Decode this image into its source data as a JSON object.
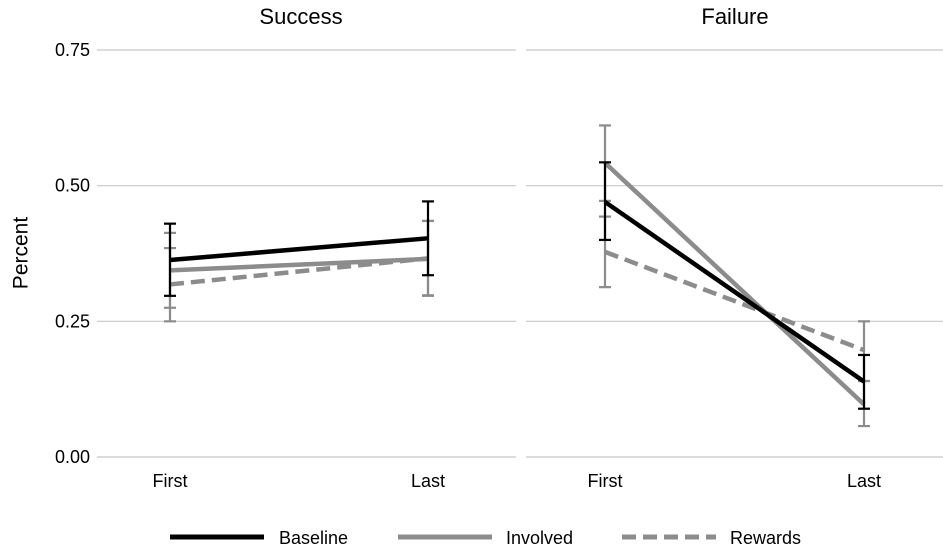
{
  "chart_data": {
    "type": "line",
    "ylabel": "Percent",
    "ylim": [
      0,
      0.75
    ],
    "yticks": [
      "0.00",
      "0.25",
      "0.50",
      "0.75"
    ],
    "yticks_values": [
      0,
      0.25,
      0.5,
      0.75
    ],
    "x": [
      "First",
      "Last"
    ],
    "grid": true,
    "legend_position": "bottom",
    "series_styles": {
      "Baseline": {
        "color": "#000000",
        "dash": "solid"
      },
      "Involved": {
        "color": "#8c8c8c",
        "dash": "solid"
      },
      "Rewards": {
        "color": "#8c8c8c",
        "dash": "dashed"
      }
    },
    "panels": [
      {
        "title": "Success",
        "series": [
          {
            "name": "Baseline",
            "values": [
              0.363,
              0.403
            ],
            "lower": [
              0.297,
              0.335
            ],
            "upper": [
              0.43,
              0.471
            ]
          },
          {
            "name": "Involved",
            "values": [
              0.344,
              0.365
            ],
            "lower": [
              0.275,
              0.298
            ],
            "upper": [
              0.413,
              0.435
            ]
          },
          {
            "name": "Rewards",
            "values": [
              0.318,
              0.366
            ],
            "lower": [
              0.25,
              0.297
            ],
            "upper": [
              0.385,
              0.435
            ]
          }
        ]
      },
      {
        "title": "Failure",
        "series": [
          {
            "name": "Baseline",
            "values": [
              0.47,
              0.139
            ],
            "lower": [
              0.4,
              0.089
            ],
            "upper": [
              0.543,
              0.188
            ]
          },
          {
            "name": "Involved",
            "values": [
              0.542,
              0.097
            ],
            "lower": [
              0.472,
              0.057
            ],
            "upper": [
              0.611,
              0.14
            ]
          },
          {
            "name": "Rewards",
            "values": [
              0.378,
              0.197
            ],
            "lower": [
              0.313,
              0.14
            ],
            "upper": [
              0.443,
              0.25
            ]
          }
        ]
      }
    ],
    "legend": [
      "Baseline",
      "Involved",
      "Rewards"
    ]
  }
}
